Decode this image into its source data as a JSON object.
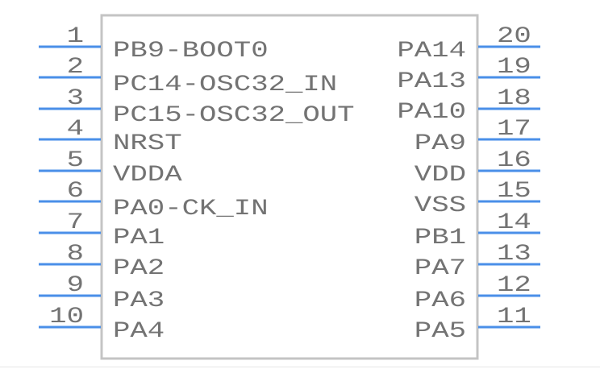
{
  "colors": {
    "pin": "#4a8fe8",
    "body_outline": "#c4c4c4",
    "text": "#737373"
  },
  "left_pins": [
    {
      "number": "1",
      "name": "PB9-BOOT0"
    },
    {
      "number": "2",
      "name": "PC14-OSC32_IN"
    },
    {
      "number": "3",
      "name": "PC15-OSC32_OUT"
    },
    {
      "number": "4",
      "name": "NRST"
    },
    {
      "number": "5",
      "name": "VDDA"
    },
    {
      "number": "6",
      "name": "PA0-CK_IN"
    },
    {
      "number": "7",
      "name": "PA1"
    },
    {
      "number": "8",
      "name": "PA2"
    },
    {
      "number": "9",
      "name": "PA3"
    },
    {
      "number": "10",
      "name": "PA4"
    }
  ],
  "right_pins": [
    {
      "number": "20",
      "name": "PA14"
    },
    {
      "number": "19",
      "name": "PA13"
    },
    {
      "number": "18",
      "name": "PA10"
    },
    {
      "number": "17",
      "name": "PA9"
    },
    {
      "number": "16",
      "name": "VDD"
    },
    {
      "number": "15",
      "name": "VSS"
    },
    {
      "number": "14",
      "name": "PB1"
    },
    {
      "number": "13",
      "name": "PA7"
    },
    {
      "number": "12",
      "name": "PA6"
    },
    {
      "number": "11",
      "name": "PA5"
    }
  ]
}
